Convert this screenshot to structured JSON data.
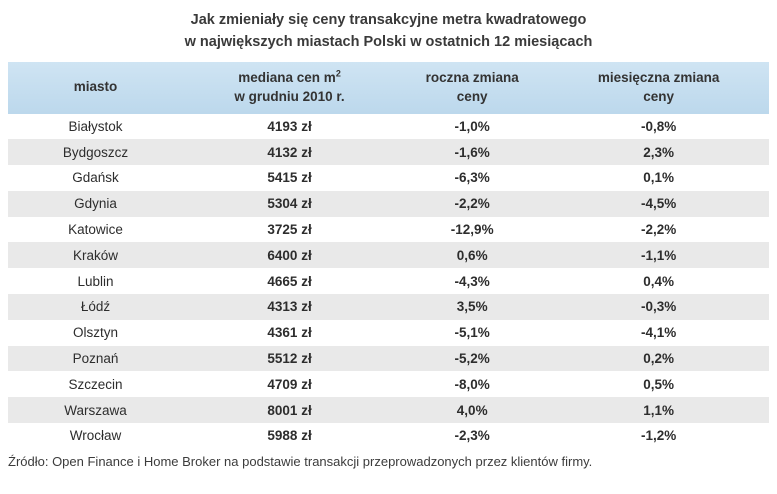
{
  "title": {
    "line1": "Jak zmieniały się ceny transakcyjne metra kwadratowego",
    "line2": "w największych miastach Polski w ostatnich 12 miesiącach"
  },
  "table": {
    "headers": {
      "city": "miasto",
      "median_line1": "mediana cen m",
      "median_sup": "2",
      "median_line2": "w grudniu 2010 r.",
      "yearly_line1": "roczna zmiana",
      "yearly_line2": "ceny",
      "monthly_line1": "miesięczna zmiana",
      "monthly_line2": "ceny"
    },
    "rows": [
      {
        "city": "Białystok",
        "median": "4193 zł",
        "yearly": "-1,0%",
        "monthly": "-0,8%"
      },
      {
        "city": "Bydgoszcz",
        "median": "4132 zł",
        "yearly": "-1,6%",
        "monthly": "2,3%"
      },
      {
        "city": "Gdańsk",
        "median": "5415 zł",
        "yearly": "-6,3%",
        "monthly": "0,1%"
      },
      {
        "city": "Gdynia",
        "median": "5304 zł",
        "yearly": "-2,2%",
        "monthly": "-4,5%"
      },
      {
        "city": "Katowice",
        "median": "3725 zł",
        "yearly": "-12,9%",
        "monthly": "-2,2%"
      },
      {
        "city": "Kraków",
        "median": "6400 zł",
        "yearly": "0,6%",
        "monthly": "-1,1%"
      },
      {
        "city": "Lublin",
        "median": "4665 zł",
        "yearly": "-4,3%",
        "monthly": "0,4%"
      },
      {
        "city": "Łódź",
        "median": "4313 zł",
        "yearly": "3,5%",
        "monthly": "-0,3%"
      },
      {
        "city": "Olsztyn",
        "median": "4361 zł",
        "yearly": "-5,1%",
        "monthly": "-4,1%"
      },
      {
        "city": "Poznań",
        "median": "5512 zł",
        "yearly": "-5,2%",
        "monthly": "0,2%"
      },
      {
        "city": "Szczecin",
        "median": "4709 zł",
        "yearly": "-8,0%",
        "monthly": "0,5%"
      },
      {
        "city": "Warszawa",
        "median": "8001 zł",
        "yearly": "4,0%",
        "monthly": "1,1%"
      },
      {
        "city": "Wrocław",
        "median": "5988 zł",
        "yearly": "-2,3%",
        "monthly": "-1,2%"
      }
    ]
  },
  "source": "Źródło: Open Finance i Home Broker na podstawie transakcji przeprowadzonych przez klientów firmy.",
  "colors": {
    "header_background": "#c3ddef",
    "alt_row_background": "#e9e9e9",
    "text": "#333333"
  },
  "chart_data": {
    "type": "table",
    "title": "Jak zmieniały się ceny transakcyjne metra kwadratowego w największych miastach Polski w ostatnich 12 miesiącach",
    "columns": [
      "miasto",
      "mediana cen m2 w grudniu 2010 r.",
      "roczna zmiana ceny",
      "miesięczna zmiana ceny"
    ],
    "units": {
      "median": "zł",
      "yearly_change": "%",
      "monthly_change": "%"
    },
    "rows": [
      [
        "Białystok",
        4193,
        -1.0,
        -0.8
      ],
      [
        "Bydgoszcz",
        4132,
        -1.6,
        2.3
      ],
      [
        "Gdańsk",
        5415,
        -6.3,
        0.1
      ],
      [
        "Gdynia",
        5304,
        -2.2,
        -4.5
      ],
      [
        "Katowice",
        3725,
        -12.9,
        -2.2
      ],
      [
        "Kraków",
        6400,
        0.6,
        -1.1
      ],
      [
        "Lublin",
        4665,
        -4.3,
        0.4
      ],
      [
        "Łódź",
        4313,
        3.5,
        -0.3
      ],
      [
        "Olsztyn",
        4361,
        -5.1,
        -4.1
      ],
      [
        "Poznań",
        5512,
        -5.2,
        0.2
      ],
      [
        "Szczecin",
        4709,
        -8.0,
        0.5
      ],
      [
        "Warszawa",
        8001,
        4.0,
        1.1
      ],
      [
        "Wrocław",
        5988,
        -2.3,
        -1.2
      ]
    ],
    "source": "Źródło: Open Finance i Home Broker na podstawie transakcji przeprowadzonych przez klientów firmy."
  }
}
